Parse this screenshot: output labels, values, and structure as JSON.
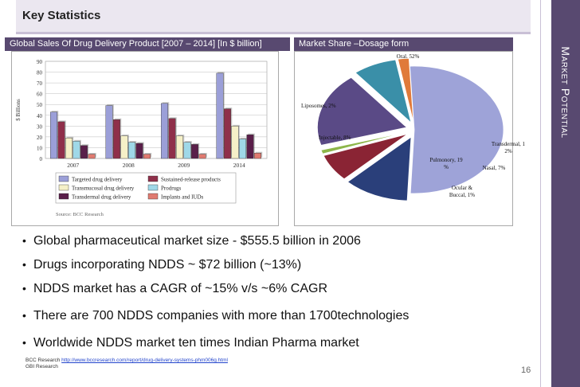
{
  "header": {
    "title": "Key Statistics"
  },
  "sidebar": {
    "label": "Market Potential"
  },
  "bar_panel": {
    "title": "Global Sales Of Drug Delivery Product  [2007 – 2014] [In $ billion]"
  },
  "pie_panel": {
    "title": "Market Share –Dosage form"
  },
  "chart_data": [
    {
      "type": "bar",
      "ylabel": "$ Billions",
      "ylim": [
        0,
        90
      ],
      "yticks": [
        "0",
        "10",
        "20",
        "30",
        "40",
        "50",
        "60",
        "70",
        "80",
        "90"
      ],
      "categories": [
        "2007",
        "2008",
        "2009",
        "2014"
      ],
      "series": [
        {
          "name": "Targeted drug delivery",
          "color": "#9b9fd8",
          "values": [
            43,
            49,
            51,
            79
          ]
        },
        {
          "name": "Sustained-release products",
          "color": "#8f2f4a",
          "values": [
            34,
            36,
            37,
            46
          ]
        },
        {
          "name": "Transmucosal drug delivery",
          "color": "#f5f0c8",
          "values": [
            19,
            21,
            21,
            30
          ]
        },
        {
          "name": "Prodrugs",
          "color": "#9fd8e8",
          "values": [
            16,
            15,
            15,
            18
          ]
        },
        {
          "name": "Transdermal drug delivery",
          "color": "#5a1f4a",
          "values": [
            12,
            14,
            13,
            22
          ]
        },
        {
          "name": "Implants and IUDs",
          "color": "#e07a70",
          "values": [
            4,
            4,
            4,
            5
          ]
        }
      ],
      "legend": "bottom",
      "source": "Source: BCC Research"
    },
    {
      "type": "pie",
      "slices": [
        {
          "label": "Oral, 52%",
          "value": 52,
          "color": "#9ea3d8"
        },
        {
          "label": "Transdermal, 1\n2%",
          "value": 12,
          "color": "#2a3f7a"
        },
        {
          "label": "Nasal, 7%",
          "value": 7,
          "color": "#8a2434"
        },
        {
          "label": "Ocular &\nBuccal, 1%",
          "value": 1,
          "color": "#8db64a"
        },
        {
          "label": "Pulmonory, 19\n%",
          "value": 19,
          "color": "#5a4a86"
        },
        {
          "label": "Injectable, 8%",
          "value": 8,
          "color": "#3a8fa8"
        },
        {
          "label": "Liposomes, 2%",
          "value": 2,
          "color": "#e07a3a"
        }
      ]
    }
  ],
  "bullets": [
    "Global pharmaceutical market size - $555.5 billion in 2006",
    "Drugs incorporating NDDS ~ $72 billion (~13%)",
    "NDDS market has a CAGR of ~15% v/s ~6% CAGR",
    "There are 700 NDDS companies with more than 1700technologies",
    "Worldwide NDDS market ten times Indian Pharma market"
  ],
  "references": {
    "line1_prefix": "BCC Research ",
    "line1_link": "http://www.bccresearch.com/report/drug-delivery-systems-phm006g.html",
    "line2": "GBI Research"
  },
  "page_number": "16"
}
